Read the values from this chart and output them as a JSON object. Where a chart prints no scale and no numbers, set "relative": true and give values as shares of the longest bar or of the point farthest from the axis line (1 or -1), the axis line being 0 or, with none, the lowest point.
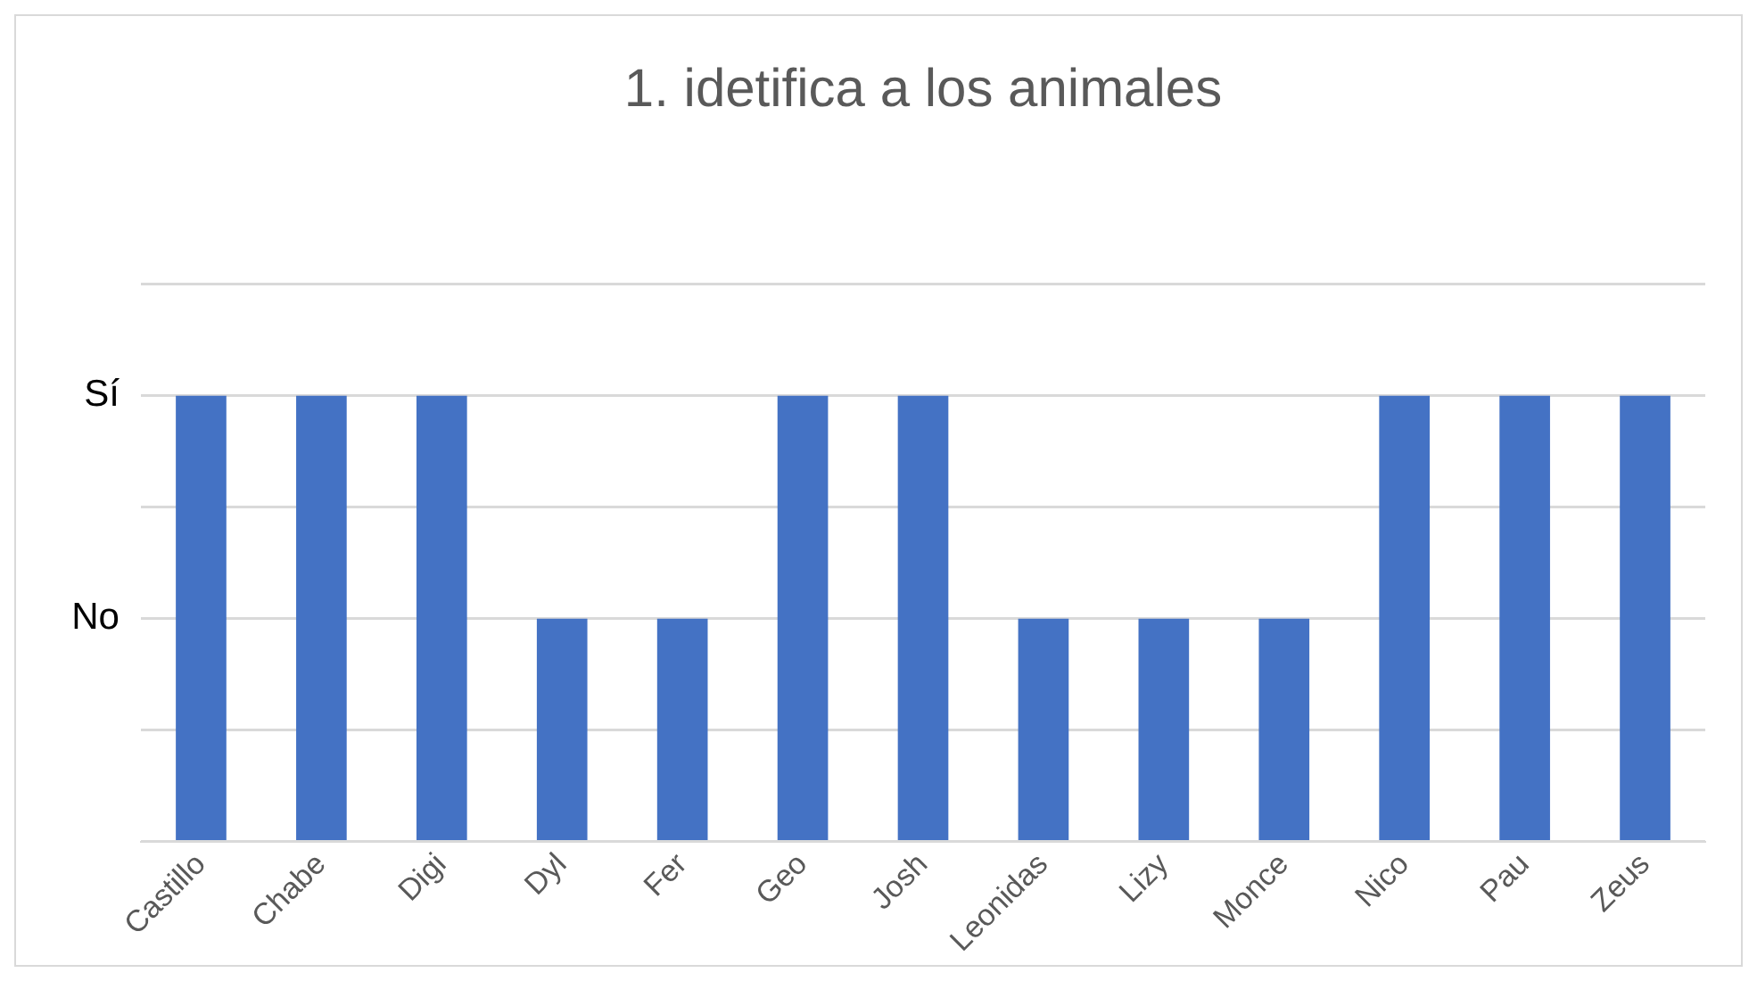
{
  "chart_data": {
    "type": "bar",
    "title": "1. idetifica a los animales",
    "categories": [
      "Castillo",
      "Chabe",
      "Digi",
      "Dyl",
      "Fer",
      "Geo",
      "Josh",
      "Leonidas",
      "Lizy",
      "Monce",
      "Nico",
      "Pau",
      "Zeus"
    ],
    "values": [
      1,
      1,
      1,
      0.5,
      0.5,
      1,
      1,
      0.5,
      0.5,
      0.5,
      1,
      1,
      1
    ],
    "relative": true,
    "color": "#4472c4",
    "annotations": [
      "Sí",
      "No"
    ],
    "grid": "y",
    "legend": false
  }
}
